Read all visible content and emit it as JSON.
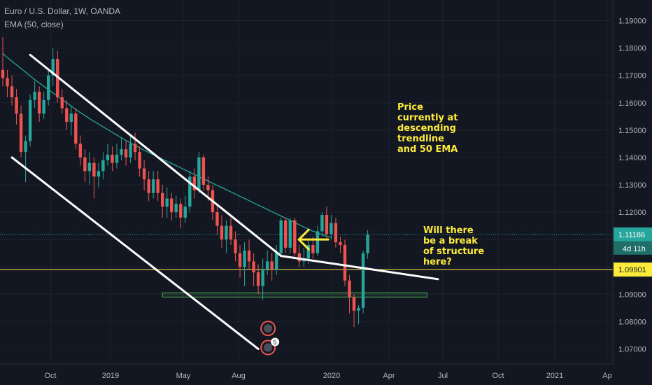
{
  "header": {
    "symbol_line": "Euro / U.S. Dollar, 1W, OANDA",
    "indicator_line": "EMA (50, close)"
  },
  "annotations": {
    "top_note": "Price\ncurrently at\ndescending\ntrendline\nand 50 EMA",
    "right_note": "Will there\nbe a break\nof structure\nhere?"
  },
  "colors": {
    "background": "#131722",
    "up": "#26a69a",
    "down": "#ef5350",
    "ema": "#26a69a",
    "trendline": "#ffffff",
    "level": "#ffeb3b",
    "support_box": "#4caf50",
    "annotation": "#ffeb3b",
    "axis_text": "#b2b5be",
    "price_tag": "#26a69a"
  },
  "chart_data": {
    "type": "candlestick",
    "xlabel": "",
    "ylabel": "",
    "ylim": [
      1.065,
      1.195
    ],
    "y_ticks": [
      "1.19000",
      "1.18000",
      "1.17000",
      "1.16000",
      "1.15000",
      "1.14000",
      "1.13000",
      "1.12000",
      "1.11000",
      "1.10000",
      "1.09000",
      "1.08000",
      "1.07000"
    ],
    "x_ticks": [
      "Oct",
      "2019",
      "May",
      "Aug",
      "2020",
      "Apr",
      "Jul",
      "Oct",
      "2021",
      "Ap"
    ],
    "current_price": {
      "label": "1.11186",
      "value": 1.11186,
      "countdown": "4d 11h"
    },
    "level": {
      "label": "1.09901",
      "value": 1.09901
    },
    "support_zone": {
      "from": 1.0895,
      "to": 1.0905,
      "start_week": 35,
      "end_week": 93
    },
    "trendlines": [
      {
        "name": "upper",
        "start": [
          6,
          1.1775
        ],
        "end": [
          61,
          1.104
        ]
      },
      {
        "name": "lower",
        "start": [
          2,
          1.14
        ],
        "end": [
          56,
          1.07
        ]
      }
    ],
    "arrow": {
      "week": 64,
      "value": 1.11,
      "direction": "left"
    },
    "event_badges": [
      {
        "week": 58,
        "value": 1.0775,
        "label": ""
      },
      {
        "week": 58,
        "value": 1.0705,
        "label": "5"
      }
    ],
    "ema_50": [
      1.178,
      1.1765,
      1.1752,
      1.1738,
      1.1725,
      1.1712,
      1.1698,
      1.1685,
      1.1672,
      1.166,
      1.1648,
      1.1636,
      1.1624,
      1.1612,
      1.16,
      1.1588,
      1.1576,
      1.1564,
      1.1553,
      1.1542,
      1.1532,
      1.1522,
      1.1512,
      1.1502,
      1.1492,
      1.1482,
      1.1472,
      1.1462,
      1.1453,
      1.1444,
      1.1435,
      1.1426,
      1.1418,
      1.141,
      1.1402,
      1.1394,
      1.1386,
      1.1378,
      1.137,
      1.1362,
      1.1354,
      1.1346,
      1.1338,
      1.133,
      1.1322,
      1.1314,
      1.1306,
      1.1298,
      1.129,
      1.1282,
      1.1274,
      1.1266,
      1.1258,
      1.125,
      1.1242,
      1.1234,
      1.1226,
      1.1218,
      1.121,
      1.1202,
      1.1194,
      1.1186,
      1.1178,
      1.117,
      1.1162,
      1.1154,
      1.1146,
      1.1138,
      1.113,
      1.1125,
      1.1118,
      1.1112,
      1.1108
    ],
    "candles": [
      [
        1.172,
        1.169,
        1.184,
        1.166
      ],
      [
        1.169,
        1.166,
        1.172,
        1.162
      ],
      [
        1.166,
        1.162,
        1.17,
        1.159
      ],
      [
        1.162,
        1.156,
        1.165,
        1.152
      ],
      [
        1.156,
        1.142,
        1.159,
        1.14
      ],
      [
        1.142,
        1.146,
        1.148,
        1.131
      ],
      [
        1.146,
        1.161,
        1.163,
        1.144
      ],
      [
        1.161,
        1.164,
        1.168,
        1.158
      ],
      [
        1.164,
        1.156,
        1.166,
        1.153
      ],
      [
        1.156,
        1.161,
        1.164,
        1.154
      ],
      [
        1.161,
        1.17,
        1.172,
        1.159
      ],
      [
        1.17,
        1.176,
        1.18,
        1.166
      ],
      [
        1.176,
        1.162,
        1.179,
        1.16
      ],
      [
        1.162,
        1.158,
        1.165,
        1.156
      ],
      [
        1.158,
        1.153,
        1.161,
        1.15
      ],
      [
        1.153,
        1.156,
        1.159,
        1.148
      ],
      [
        1.156,
        1.145,
        1.158,
        1.143
      ],
      [
        1.145,
        1.14,
        1.148,
        1.137
      ],
      [
        1.14,
        1.135,
        1.143,
        1.131
      ],
      [
        1.135,
        1.138,
        1.142,
        1.13
      ],
      [
        1.138,
        1.133,
        1.14,
        1.125
      ],
      [
        1.133,
        1.135,
        1.138,
        1.129
      ],
      [
        1.135,
        1.139,
        1.142,
        1.132
      ],
      [
        1.139,
        1.141,
        1.145,
        1.137
      ],
      [
        1.141,
        1.138,
        1.144,
        1.135
      ],
      [
        1.138,
        1.141,
        1.145,
        1.136
      ],
      [
        1.141,
        1.143,
        1.147,
        1.139
      ],
      [
        1.143,
        1.14,
        1.146,
        1.137
      ],
      [
        1.14,
        1.145,
        1.148,
        1.138
      ],
      [
        1.145,
        1.142,
        1.149,
        1.139
      ],
      [
        1.142,
        1.136,
        1.144,
        1.133
      ],
      [
        1.136,
        1.132,
        1.139,
        1.128
      ],
      [
        1.132,
        1.127,
        1.135,
        1.124
      ],
      [
        1.127,
        1.132,
        1.135,
        1.125
      ],
      [
        1.132,
        1.127,
        1.135,
        1.124
      ],
      [
        1.127,
        1.122,
        1.13,
        1.118
      ],
      [
        1.122,
        1.125,
        1.129,
        1.118
      ],
      [
        1.125,
        1.12,
        1.127,
        1.117
      ],
      [
        1.12,
        1.123,
        1.126,
        1.118
      ],
      [
        1.123,
        1.118,
        1.125,
        1.114
      ],
      [
        1.118,
        1.122,
        1.126,
        1.116
      ],
      [
        1.122,
        1.133,
        1.135,
        1.12
      ],
      [
        1.133,
        1.128,
        1.136,
        1.125
      ],
      [
        1.128,
        1.14,
        1.142,
        1.127
      ],
      [
        1.14,
        1.13,
        1.141,
        1.128
      ],
      [
        1.13,
        1.128,
        1.133,
        1.124
      ],
      [
        1.128,
        1.12,
        1.13,
        1.117
      ],
      [
        1.12,
        1.115,
        1.123,
        1.112
      ],
      [
        1.115,
        1.11,
        1.119,
        1.107
      ],
      [
        1.11,
        1.115,
        1.117,
        1.105
      ],
      [
        1.115,
        1.11,
        1.118,
        1.108
      ],
      [
        1.11,
        1.105,
        1.113,
        1.102
      ],
      [
        1.105,
        1.1,
        1.108,
        1.096
      ],
      [
        1.1,
        1.106,
        1.109,
        1.093
      ],
      [
        1.106,
        1.102,
        1.11,
        1.099
      ],
      [
        1.102,
        1.098,
        1.105,
        1.093
      ],
      [
        1.098,
        1.093,
        1.101,
        1.09
      ],
      [
        1.093,
        1.099,
        1.103,
        1.088
      ],
      [
        1.099,
        1.102,
        1.106,
        1.097
      ],
      [
        1.102,
        1.099,
        1.105,
        1.095
      ],
      [
        1.099,
        1.105,
        1.108,
        1.097
      ],
      [
        1.105,
        1.117,
        1.118,
        1.104
      ],
      [
        1.117,
        1.107,
        1.118,
        1.105
      ],
      [
        1.107,
        1.117,
        1.118,
        1.105
      ],
      [
        1.117,
        1.105,
        1.118,
        1.103
      ],
      [
        1.105,
        1.102,
        1.108,
        1.1
      ],
      [
        1.102,
        1.103,
        1.107,
        1.1
      ],
      [
        1.103,
        1.108,
        1.11,
        1.101
      ],
      [
        1.108,
        1.105,
        1.111,
        1.103
      ],
      [
        1.105,
        1.113,
        1.115,
        1.104
      ],
      [
        1.113,
        1.119,
        1.12,
        1.111
      ],
      [
        1.119,
        1.112,
        1.122,
        1.11
      ],
      [
        1.112,
        1.116,
        1.119,
        1.11
      ],
      [
        1.116,
        1.109,
        1.118,
        1.107
      ],
      [
        1.109,
        1.108,
        1.111,
        1.105
      ],
      [
        1.108,
        1.095,
        1.11,
        1.093
      ],
      [
        1.095,
        1.089,
        1.097,
        1.083
      ],
      [
        1.089,
        1.084,
        1.09,
        1.078
      ],
      [
        1.084,
        1.085,
        1.086,
        1.079
      ],
      [
        1.085,
        1.105,
        1.106,
        1.083
      ],
      [
        1.105,
        1.1118,
        1.1135,
        1.103
      ]
    ]
  }
}
